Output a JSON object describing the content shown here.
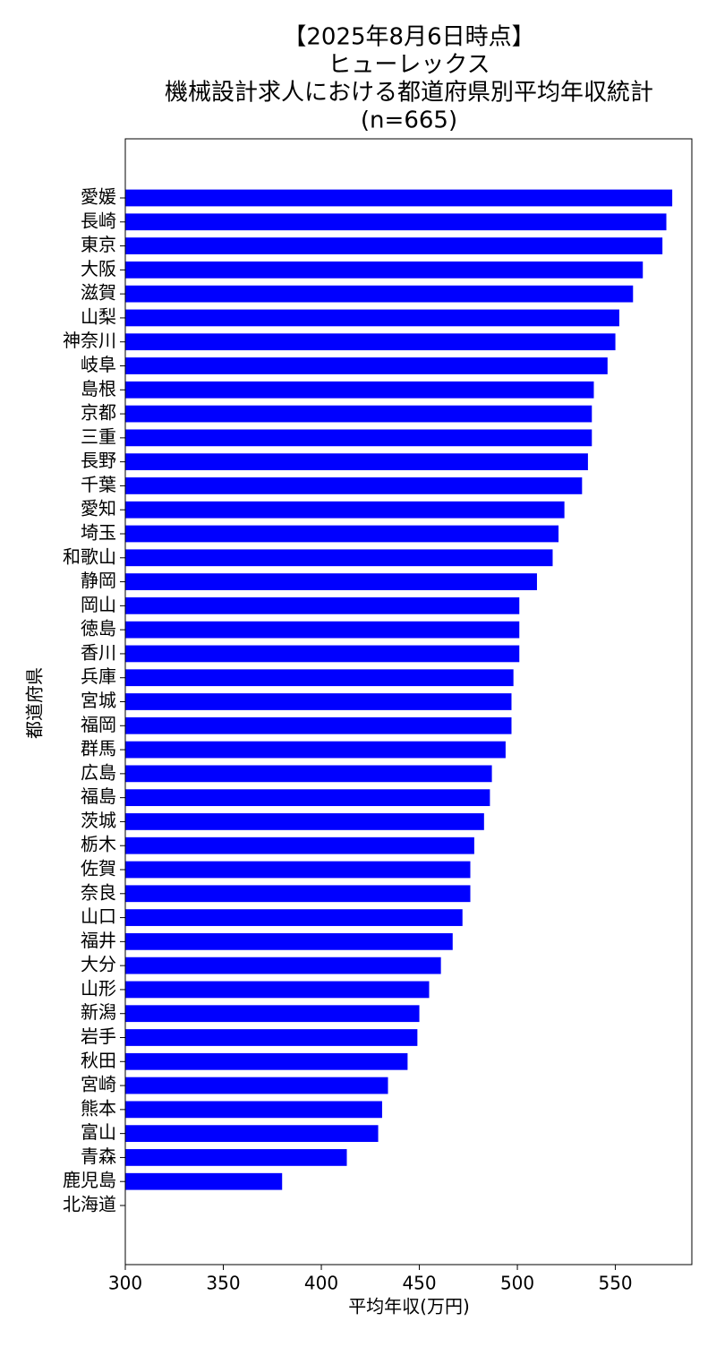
{
  "chart_data": {
    "type": "barh",
    "title": [
      "【2025年8月6日時点】",
      "ヒューレックス",
      "機械設計求人における都道府県別平均年収統計",
      "(n=665)"
    ],
    "xlabel": "平均年収(万円)",
    "ylabel": "都道府県",
    "categories": [
      "愛媛",
      "長崎",
      "東京",
      "大阪",
      "滋賀",
      "山梨",
      "神奈川",
      "岐阜",
      "島根",
      "京都",
      "三重",
      "長野",
      "千葉",
      "愛知",
      "埼玉",
      "和歌山",
      "静岡",
      "岡山",
      "徳島",
      "香川",
      "兵庫",
      "宮城",
      "福岡",
      "群馬",
      "広島",
      "福島",
      "茨城",
      "栃木",
      "佐賀",
      "奈良",
      "山口",
      "福井",
      "大分",
      "山形",
      "新潟",
      "岩手",
      "秋田",
      "宮崎",
      "熊本",
      "富山",
      "青森",
      "鹿児島",
      "北海道"
    ],
    "values": [
      579,
      576,
      574,
      564,
      559,
      552,
      550,
      546,
      539,
      538,
      538,
      536,
      533,
      524,
      521,
      518,
      510,
      501,
      501,
      501,
      498,
      497,
      497,
      494,
      487,
      486,
      483,
      478,
      476,
      476,
      472,
      467,
      461,
      455,
      450,
      449,
      444,
      434,
      431,
      429,
      413,
      380,
      null
    ],
    "color": "#0000ff",
    "xlim": [
      300,
      589
    ],
    "xticks": [
      300,
      350,
      400,
      450,
      500,
      550
    ],
    "grid": false
  }
}
